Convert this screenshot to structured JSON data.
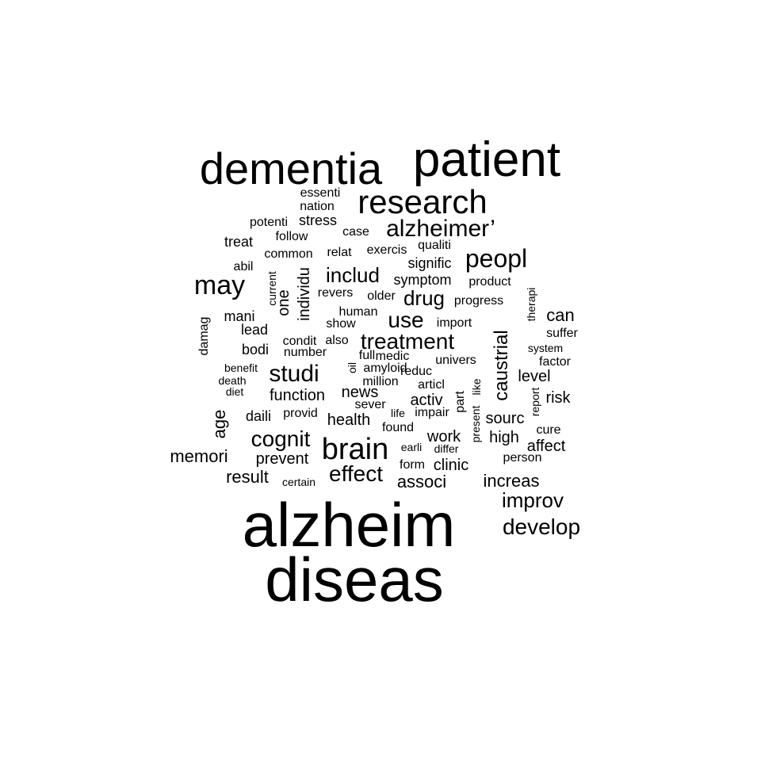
{
  "word_cloud": {
    "text_color": "#000000",
    "background": "#ffffff",
    "words": [
      {
        "text": "alzheim",
        "orientation": "horizontal"
      },
      {
        "text": "diseas",
        "orientation": "horizontal"
      },
      {
        "text": "patient",
        "orientation": "horizontal"
      },
      {
        "text": "dementia",
        "orientation": "horizontal"
      },
      {
        "text": "research",
        "orientation": "horizontal"
      },
      {
        "text": "brain",
        "orientation": "horizontal"
      },
      {
        "text": "alzheimer’",
        "orientation": "horizontal"
      },
      {
        "text": "may",
        "orientation": "horizontal"
      },
      {
        "text": "peopl",
        "orientation": "horizontal"
      },
      {
        "text": "treatment",
        "orientation": "horizontal"
      },
      {
        "text": "studi",
        "orientation": "horizontal"
      },
      {
        "text": "effect",
        "orientation": "horizontal"
      },
      {
        "text": "use",
        "orientation": "horizontal"
      },
      {
        "text": "cognit",
        "orientation": "horizontal"
      },
      {
        "text": "develop",
        "orientation": "horizontal"
      },
      {
        "text": "improv",
        "orientation": "horizontal"
      },
      {
        "text": "includ",
        "orientation": "horizontal"
      },
      {
        "text": "drug",
        "orientation": "horizontal"
      },
      {
        "text": "caustrial",
        "orientation": "vertical"
      },
      {
        "text": "increas",
        "orientation": "horizontal"
      },
      {
        "text": "can",
        "orientation": "horizontal"
      },
      {
        "text": "associ",
        "orientation": "horizontal"
      },
      {
        "text": "memori",
        "orientation": "horizontal"
      },
      {
        "text": "age",
        "orientation": "vertical"
      },
      {
        "text": "result",
        "orientation": "horizontal"
      },
      {
        "text": "function",
        "orientation": "horizontal"
      },
      {
        "text": "prevent",
        "orientation": "horizontal"
      },
      {
        "text": "health",
        "orientation": "horizontal"
      },
      {
        "text": "news",
        "orientation": "horizontal"
      },
      {
        "text": "activ",
        "orientation": "horizontal"
      },
      {
        "text": "work",
        "orientation": "horizontal"
      },
      {
        "text": "clinic",
        "orientation": "horizontal"
      },
      {
        "text": "sourc",
        "orientation": "horizontal"
      },
      {
        "text": "high",
        "orientation": "horizontal"
      },
      {
        "text": "risk",
        "orientation": "horizontal"
      },
      {
        "text": "level",
        "orientation": "horizontal"
      },
      {
        "text": "affect",
        "orientation": "horizontal"
      },
      {
        "text": "one",
        "orientation": "vertical"
      },
      {
        "text": "individu",
        "orientation": "vertical"
      },
      {
        "text": "symptom",
        "orientation": "horizontal"
      },
      {
        "text": "signific",
        "orientation": "horizontal"
      },
      {
        "text": "lead",
        "orientation": "horizontal"
      },
      {
        "text": "bodi",
        "orientation": "horizontal"
      },
      {
        "text": "mani",
        "orientation": "horizontal"
      },
      {
        "text": "daili",
        "orientation": "horizontal"
      },
      {
        "text": "treat",
        "orientation": "horizontal"
      },
      {
        "text": "stress",
        "orientation": "horizontal"
      },
      {
        "text": "case",
        "orientation": "horizontal"
      },
      {
        "text": "show",
        "orientation": "horizontal"
      },
      {
        "text": "also",
        "orientation": "horizontal"
      },
      {
        "text": "medic",
        "orientation": "horizontal"
      },
      {
        "text": "reduc",
        "orientation": "horizontal"
      },
      {
        "text": "univers",
        "orientation": "horizontal"
      },
      {
        "text": "articl",
        "orientation": "horizontal"
      },
      {
        "text": "found",
        "orientation": "horizontal"
      },
      {
        "text": "cure",
        "orientation": "horizontal"
      },
      {
        "text": "suffer",
        "orientation": "horizontal"
      },
      {
        "text": "factor",
        "orientation": "horizontal"
      },
      {
        "text": "form",
        "orientation": "horizontal"
      },
      {
        "text": "part",
        "orientation": "vertical"
      },
      {
        "text": "common",
        "orientation": "horizontal"
      },
      {
        "text": "follow",
        "orientation": "horizontal"
      },
      {
        "text": "potenti",
        "orientation": "horizontal"
      },
      {
        "text": "essenti",
        "orientation": "horizontal"
      },
      {
        "text": "nation",
        "orientation": "horizontal"
      },
      {
        "text": "relat",
        "orientation": "horizontal"
      },
      {
        "text": "exercis",
        "orientation": "horizontal"
      },
      {
        "text": "qualiti",
        "orientation": "horizontal"
      },
      {
        "text": "product",
        "orientation": "horizontal"
      },
      {
        "text": "progress",
        "orientation": "horizontal"
      },
      {
        "text": "older",
        "orientation": "horizontal"
      },
      {
        "text": "revers",
        "orientation": "horizontal"
      },
      {
        "text": "human",
        "orientation": "horizontal"
      },
      {
        "text": "import",
        "orientation": "horizontal"
      },
      {
        "text": "condit",
        "orientation": "horizontal"
      },
      {
        "text": "number",
        "orientation": "horizontal"
      },
      {
        "text": "full",
        "orientation": "horizontal"
      },
      {
        "text": "amyloid",
        "orientation": "horizontal"
      },
      {
        "text": "million",
        "orientation": "horizontal"
      },
      {
        "text": "sever",
        "orientation": "horizontal"
      },
      {
        "text": "life",
        "orientation": "horizontal"
      },
      {
        "text": "impair",
        "orientation": "horizontal"
      },
      {
        "text": "earli",
        "orientation": "horizontal"
      },
      {
        "text": "differ",
        "orientation": "horizontal"
      },
      {
        "text": "person",
        "orientation": "horizontal"
      },
      {
        "text": "system",
        "orientation": "horizontal"
      },
      {
        "text": "abil",
        "orientation": "horizontal"
      },
      {
        "text": "provid",
        "orientation": "horizontal"
      },
      {
        "text": "certain",
        "orientation": "horizontal"
      },
      {
        "text": "benefit",
        "orientation": "horizontal"
      },
      {
        "text": "death",
        "orientation": "horizontal"
      },
      {
        "text": "diet",
        "orientation": "horizontal"
      },
      {
        "text": "current",
        "orientation": "vertical"
      },
      {
        "text": "damag",
        "orientation": "vertical"
      },
      {
        "text": "therapi",
        "orientation": "vertical"
      },
      {
        "text": "report",
        "orientation": "vertical"
      },
      {
        "text": "like",
        "orientation": "vertical"
      },
      {
        "text": "present",
        "orientation": "vertical"
      },
      {
        "text": "oil",
        "orientation": "vertical"
      }
    ]
  }
}
